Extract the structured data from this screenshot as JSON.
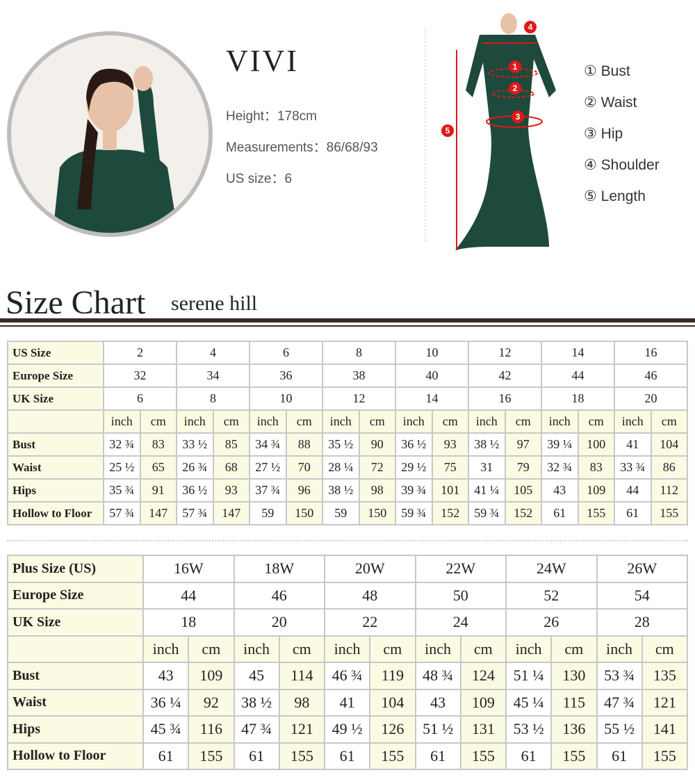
{
  "model": {
    "brand": "VIVI",
    "height_label": "Height：",
    "height": "178cm",
    "measurements_label": "Measurements：",
    "measurements": "86/68/93",
    "us_size_label": "US size：",
    "us_size": "6"
  },
  "legend": [
    "① Bust",
    "② Waist",
    "③ Hip",
    "④ Shoulder",
    "⑤ Length"
  ],
  "diagram_markers": [
    "1",
    "2",
    "3",
    "4",
    "5"
  ],
  "size_chart": {
    "title": "Size Chart",
    "subtitle": "serene hill"
  },
  "colors": {
    "marker_red": "#e01818",
    "dress_green": "#1d4a3c",
    "rule": "#3b2a22",
    "cream": "#fbfbe4"
  },
  "table_standard": {
    "size_rows": [
      {
        "label": "US Size",
        "values": [
          "2",
          "4",
          "6",
          "8",
          "10",
          "12",
          "14",
          "16"
        ]
      },
      {
        "label": "Europe Size",
        "values": [
          "32",
          "34",
          "36",
          "38",
          "40",
          "42",
          "44",
          "46"
        ]
      },
      {
        "label": "UK Size",
        "values": [
          "6",
          "8",
          "10",
          "12",
          "14",
          "16",
          "18",
          "20"
        ]
      }
    ],
    "units": [
      "inch",
      "cm"
    ],
    "measure_rows": [
      {
        "label": "Bust",
        "values": [
          "32 ¾",
          "83",
          "33 ½",
          "85",
          "34 ¾",
          "88",
          "35 ½",
          "90",
          "36 ½",
          "93",
          "38 ½",
          "97",
          "39 ¼",
          "100",
          "41",
          "104"
        ]
      },
      {
        "label": "Waist",
        "values": [
          "25 ½",
          "65",
          "26 ¾",
          "68",
          "27 ½",
          "70",
          "28 ¼",
          "72",
          "29 ½",
          "75",
          "31",
          "79",
          "32 ¾",
          "83",
          "33 ¾",
          "86"
        ]
      },
      {
        "label": "Hips",
        "values": [
          "35 ¾",
          "91",
          "36 ½",
          "93",
          "37 ¾",
          "96",
          "38 ½",
          "98",
          "39 ¾",
          "101",
          "41 ¼",
          "105",
          "43",
          "109",
          "44",
          "112"
        ]
      },
      {
        "label": "Hollow to Floor",
        "values": [
          "57 ¾",
          "147",
          "57 ¾",
          "147",
          "59",
          "150",
          "59",
          "150",
          "59 ¾",
          "152",
          "59 ¾",
          "152",
          "61",
          "155",
          "61",
          "155"
        ]
      }
    ]
  },
  "table_plus": {
    "size_rows": [
      {
        "label": "Plus Size (US)",
        "values": [
          "16W",
          "18W",
          "20W",
          "22W",
          "24W",
          "26W"
        ]
      },
      {
        "label": "Europe Size",
        "values": [
          "44",
          "46",
          "48",
          "50",
          "52",
          "54"
        ]
      },
      {
        "label": "UK Size",
        "values": [
          "18",
          "20",
          "22",
          "24",
          "26",
          "28"
        ]
      }
    ],
    "units": [
      "inch",
      "cm"
    ],
    "measure_rows": [
      {
        "label": "Bust",
        "values": [
          "43",
          "109",
          "45",
          "114",
          "46 ¾",
          "119",
          "48 ¾",
          "124",
          "51 ¼",
          "130",
          "53 ¾",
          "135"
        ]
      },
      {
        "label": "Waist",
        "values": [
          "36 ¼",
          "92",
          "38 ½",
          "98",
          "41",
          "104",
          "43",
          "109",
          "45 ¼",
          "115",
          "47 ¾",
          "121"
        ]
      },
      {
        "label": "Hips",
        "values": [
          "45 ¾",
          "116",
          "47 ¾",
          "121",
          "49 ½",
          "126",
          "51 ½",
          "131",
          "53 ½",
          "136",
          "55 ½",
          "141"
        ]
      },
      {
        "label": "Hollow to Floor",
        "values": [
          "61",
          "155",
          "61",
          "155",
          "61",
          "155",
          "61",
          "155",
          "61",
          "155",
          "61",
          "155"
        ]
      }
    ]
  }
}
